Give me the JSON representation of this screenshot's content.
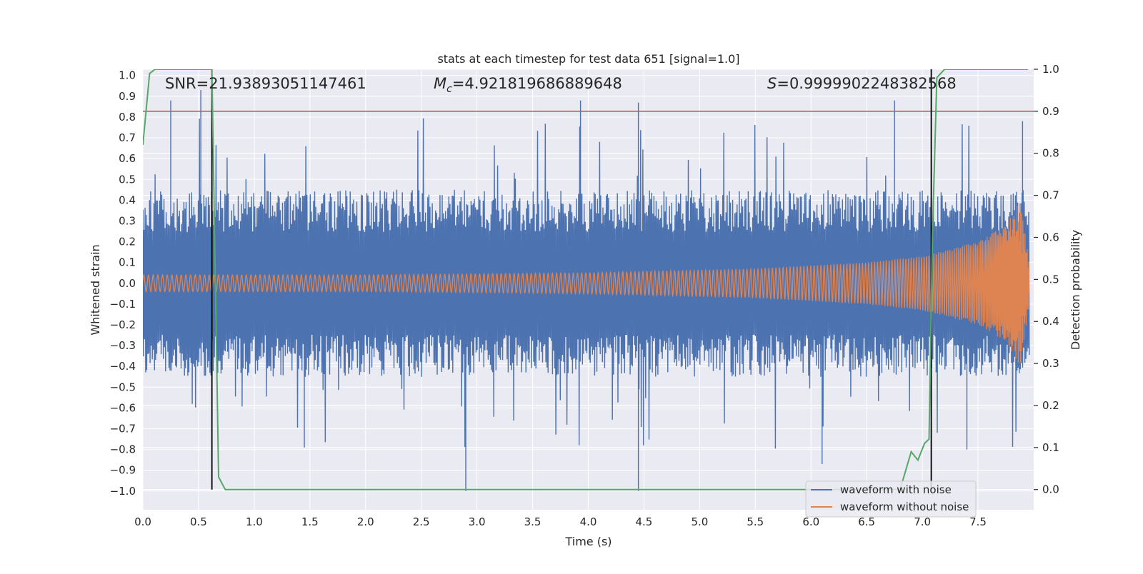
{
  "chart_data": {
    "type": "line",
    "title": "stats at each timestep for test data 651 [signal=1.0]",
    "xlabel": "Time (s)",
    "ylabel_left": "Whitened strain",
    "ylabel_right": "Detection probability",
    "xlim": [
      0.0,
      8.0
    ],
    "ylim_left": [
      -1.09,
      1.03
    ],
    "ylim_right": [
      -0.048,
      1.0
    ],
    "x_ticks": [
      0.0,
      0.5,
      1.0,
      1.5,
      2.0,
      2.5,
      3.0,
      3.5,
      4.0,
      4.5,
      5.0,
      5.5,
      6.0,
      6.5,
      7.0,
      7.5
    ],
    "x_tick_labels": [
      "0.0",
      "0.5",
      "1.0",
      "1.5",
      "2.0",
      "2.5",
      "3.0",
      "3.5",
      "4.0",
      "4.5",
      "5.0",
      "5.5",
      "6.0",
      "6.5",
      "7.0",
      "7.5"
    ],
    "y_ticks_left": [
      1.0,
      0.9,
      0.8,
      0.7,
      0.6,
      0.5,
      0.4,
      0.3,
      0.2,
      0.1,
      0.0,
      -0.1,
      -0.2,
      -0.3,
      -0.4,
      -0.5,
      -0.6,
      -0.7,
      -0.8,
      -0.9,
      -1.0
    ],
    "y_tick_labels_left": [
      "1.0",
      "0.9",
      "0.8",
      "0.7",
      "0.6",
      "0.5",
      "0.4",
      "0.3",
      "0.2",
      "0.1",
      "0.0",
      "−0.1",
      "−0.2",
      "−0.3",
      "−0.4",
      "−0.5",
      "−0.6",
      "−0.7",
      "−0.8",
      "−0.9",
      "−1.0"
    ],
    "y_ticks_right": [
      1.0,
      0.9,
      0.8,
      0.7,
      0.6,
      0.5,
      0.4,
      0.3,
      0.2,
      0.1,
      0.0
    ],
    "y_tick_labels_right": [
      "1.0",
      "0.9",
      "0.8",
      "0.7",
      "0.6",
      "0.5",
      "0.4",
      "0.3",
      "0.2",
      "0.1",
      "0.0"
    ],
    "annotations": {
      "snr": "SNR=21.93893051147461",
      "mc_symbol": "M",
      "mc_subscript": "c",
      "mc_value": "=4.921819686889648",
      "s_symbol": "S",
      "s_value": "=0.9999902248382568"
    },
    "threshold_line": {
      "value_right_axis": 0.9,
      "color": "#c44e52"
    },
    "vertical_markers_s": [
      0.62,
      7.08
    ],
    "series": [
      {
        "name": "waveform with noise",
        "color": "#4c72b0",
        "axis": "left",
        "description": "noisy whitened strain, typically within about ±0.5 with spikes",
        "envelope_typical": 0.45,
        "notable_peaks": [
          {
            "t": 0.25,
            "v": 0.88
          },
          {
            "t": 0.52,
            "v": 0.93
          },
          {
            "t": 3.93,
            "v": 0.88
          },
          {
            "t": 4.45,
            "v": 0.87
          },
          {
            "t": 6.75,
            "v": 0.88
          },
          {
            "t": 7.9,
            "v": 0.78
          }
        ],
        "notable_troughs": [
          {
            "t": 2.9,
            "v": -1.0
          },
          {
            "t": 4.45,
            "v": -1.0
          },
          {
            "t": 6.1,
            "v": -0.87
          },
          {
            "t": 1.45,
            "v": -0.79
          },
          {
            "t": 7.4,
            "v": -0.8
          }
        ]
      },
      {
        "name": "waveform without noise",
        "color": "#dd8452",
        "axis": "left",
        "description": "chirp signal with amplitude growing with time",
        "amplitude_envelope": [
          {
            "t": 0.0,
            "a": 0.04
          },
          {
            "t": 2.0,
            "a": 0.04
          },
          {
            "t": 4.0,
            "a": 0.05
          },
          {
            "t": 5.5,
            "a": 0.07
          },
          {
            "t": 6.5,
            "a": 0.1
          },
          {
            "t": 7.0,
            "a": 0.13
          },
          {
            "t": 7.5,
            "a": 0.2
          },
          {
            "t": 7.75,
            "a": 0.28
          },
          {
            "t": 7.88,
            "a": 0.4
          },
          {
            "t": 7.96,
            "a": 0.1
          }
        ]
      },
      {
        "name": "detection probability",
        "color": "#55a868",
        "axis": "right",
        "x": [
          0.0,
          0.06,
          0.11,
          0.2,
          0.4,
          0.62,
          0.68,
          0.74,
          1.0,
          3.0,
          5.0,
          6.8,
          6.9,
          6.96,
          7.02,
          7.06,
          7.09,
          7.13,
          7.2,
          7.3,
          7.6,
          7.95
        ],
        "y": [
          0.82,
          0.99,
          1.0,
          1.0,
          1.0,
          1.0,
          0.03,
          0.0,
          0.0,
          0.0,
          0.0,
          0.0,
          0.09,
          0.07,
          0.11,
          0.12,
          0.6,
          0.98,
          1.0,
          1.0,
          1.0,
          1.0
        ]
      }
    ],
    "legend": {
      "position": "lower-right",
      "entries": [
        {
          "label": "waveform with noise",
          "color": "#4c72b0"
        },
        {
          "label": "waveform without noise",
          "color": "#dd8452"
        }
      ]
    }
  }
}
